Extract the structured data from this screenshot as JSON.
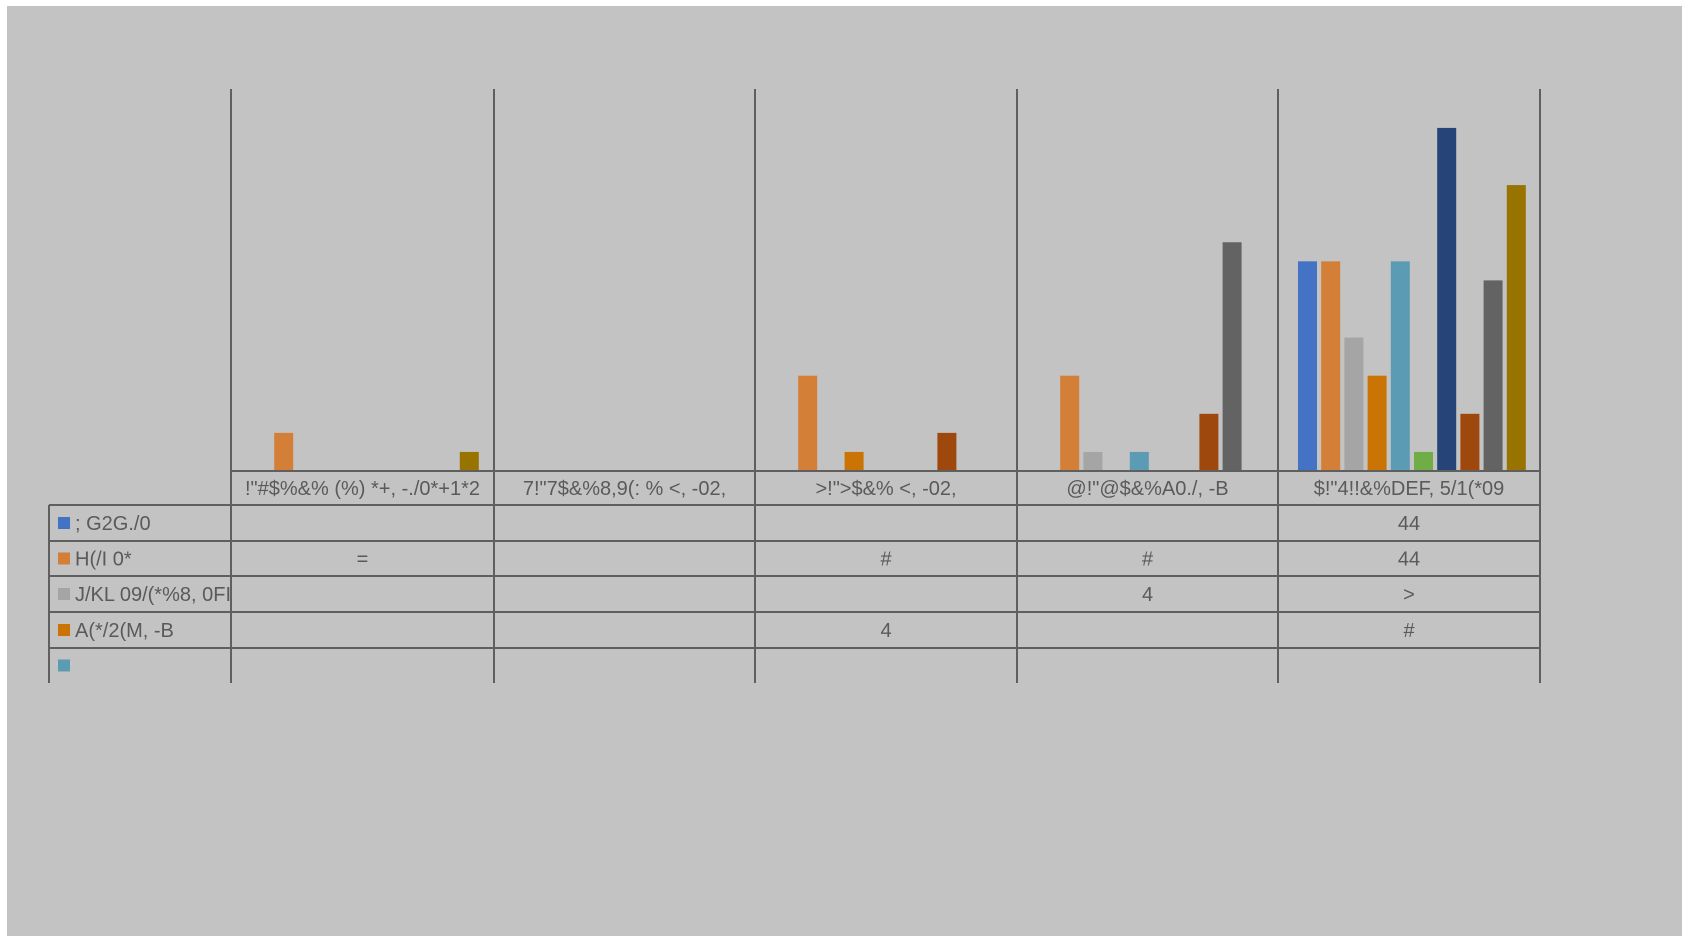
{
  "chart_data": {
    "type": "bar",
    "title": "",
    "xlabel": "",
    "ylabel": "",
    "ylim": [
      0,
      20
    ],
    "grid": false,
    "legend": "data-table",
    "categories": [
      "!\"#$%&% (%) *+, -./0*+1*2",
      "7!\"7$&%8,9(: % <, -02,",
      ">!\">$&% <, -02,",
      "@!\"@$&%A0./, -B",
      "$!\"4!!&%DEF, 5/1(*09"
    ],
    "series": [
      {
        "name": "; G2G./0",
        "color": "#4472c4",
        "values": [
          0,
          0,
          0,
          0,
          11
        ],
        "labels": [
          "",
          "",
          "",
          "",
          "44"
        ]
      },
      {
        "name": "H(/I 0*",
        "color": "#d37f37",
        "values": [
          2,
          0,
          5,
          5,
          11
        ],
        "labels": [
          "=",
          "",
          "#",
          "#",
          "44"
        ]
      },
      {
        "name": "J/KL 09/(*%8, 0FI",
        "color": "#a5a5a5",
        "values": [
          0,
          0,
          0,
          1,
          7
        ],
        "labels": [
          "",
          "",
          "",
          "4",
          ">"
        ]
      },
      {
        "name": "A(*/2(M, -B",
        "color": "#c97405",
        "values": [
          0,
          0,
          1,
          0,
          5
        ],
        "labels": [
          "",
          "",
          "4",
          "",
          "#"
        ]
      },
      {
        "name": "",
        "color": "#5b9bb3",
        "values": [
          0,
          0,
          0,
          1,
          11
        ],
        "labels": [
          "",
          "",
          "",
          "",
          ""
        ]
      },
      {
        "name": "",
        "color": "#70ad47",
        "values": [
          0,
          0,
          0,
          0,
          1
        ],
        "labels": [
          "",
          "",
          "",
          "",
          ""
        ]
      },
      {
        "name": "",
        "color": "#264478",
        "values": [
          0,
          0,
          0,
          0,
          18
        ],
        "labels": [
          "",
          "",
          "",
          "",
          ""
        ]
      },
      {
        "name": "",
        "color": "#9e480e",
        "values": [
          0,
          0,
          2,
          3,
          3
        ],
        "labels": [
          "",
          "",
          "",
          "",
          ""
        ]
      },
      {
        "name": "",
        "color": "#636363",
        "values": [
          0,
          0,
          0,
          12,
          10
        ],
        "labels": [
          "",
          "",
          "",
          "",
          ""
        ]
      },
      {
        "name": "",
        "color": "#997300",
        "values": [
          1,
          0,
          0,
          0,
          15
        ],
        "labels": [
          "",
          "",
          "",
          "",
          ""
        ]
      }
    ],
    "table_rows": 5
  },
  "colors": {
    "background": "#c3c3c3",
    "lines": "#5f5f5f",
    "text": "#5a5a5a"
  }
}
